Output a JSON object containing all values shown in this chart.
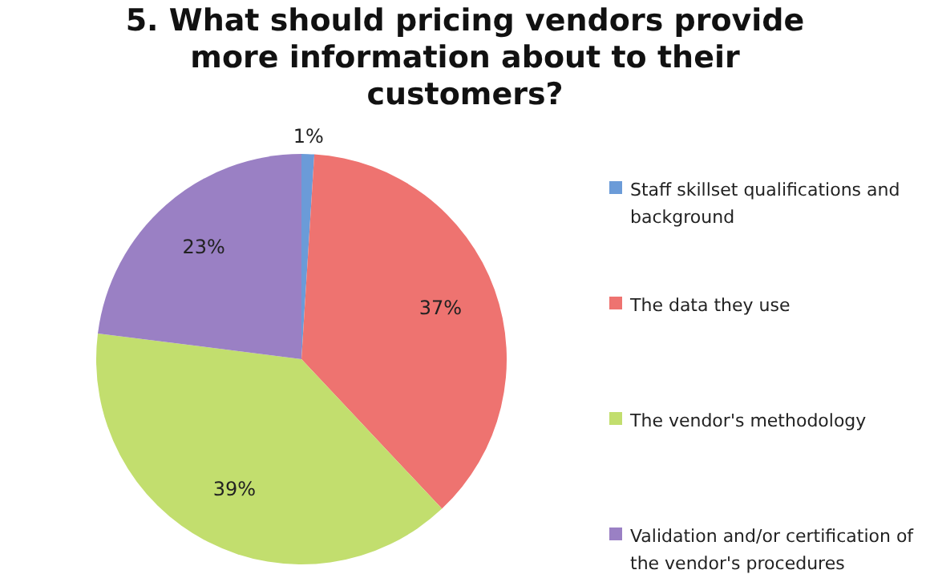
{
  "chart_data": {
    "type": "pie",
    "title": "5. What should pricing vendors provide more information about to their customers?",
    "categories": [
      "Staff skillset qualifications and background",
      "The data they use",
      "The vendor's methodology",
      "Validation and/or certification of the vendor's procedures"
    ],
    "values": [
      1,
      37,
      39,
      23
    ],
    "colors": [
      "#6b9bd8",
      "#ee7370",
      "#c2de6e",
      "#9a80c4"
    ],
    "value_labels": [
      "1%",
      "37%",
      "39%",
      "23%"
    ],
    "legend": "right"
  }
}
